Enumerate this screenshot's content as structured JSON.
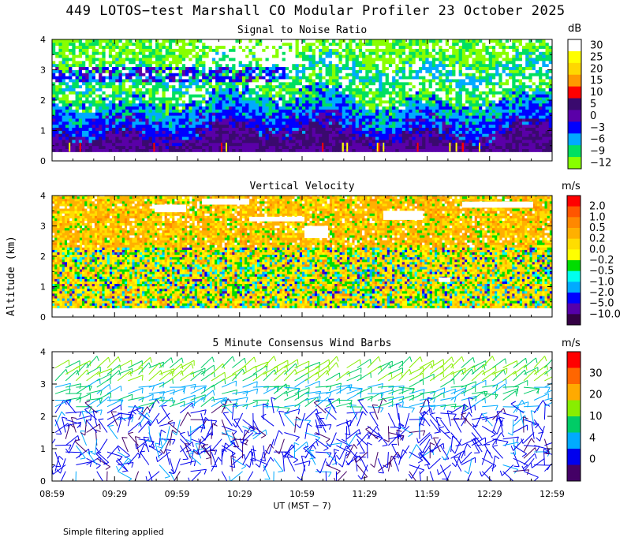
{
  "title": "449 LOTOS−test Marshall CO Modular Profiler 23 October 2025",
  "footer": "Simple filtering applied",
  "y_axis_label": "Altitude (km)",
  "x_axis_label": "UT  (MST − 7)",
  "x_ticks": [
    "08:59",
    "09:29",
    "09:59",
    "10:29",
    "10:59",
    "11:29",
    "11:59",
    "12:29",
    "12:59"
  ],
  "y_ticks": [
    "0",
    "1",
    "2",
    "3",
    "4"
  ],
  "chart_data": [
    {
      "type": "heatmap",
      "title": "Signal to Noise Ratio",
      "unit": "dB",
      "xlim": [
        "08:59",
        "12:59"
      ],
      "ylim": [
        0,
        4
      ],
      "data_altitude_range": [
        0.3,
        4.1
      ],
      "colorbar": {
        "labels": [
          "30",
          "25",
          "20",
          "15",
          "10",
          "5",
          "0",
          "−3",
          "−6",
          "−9",
          "−12"
        ],
        "colors": [
          "#ffffff",
          "#ffff00",
          "#ffd700",
          "#ff9900",
          "#ff0000",
          "#3a0a6e",
          "#5a00a8",
          "#0000ff",
          "#00aaff",
          "#00e060",
          "#88ff00"
        ]
      }
    },
    {
      "type": "heatmap",
      "title": "Vertical Velocity",
      "unit": "m/s",
      "xlim": [
        "08:59",
        "12:59"
      ],
      "ylim": [
        0,
        4
      ],
      "data_altitude_range": [
        0.3,
        4.1
      ],
      "colorbar": {
        "labels": [
          "2.0",
          "1.0",
          "0.5",
          "0.2",
          "0.0",
          "−0.2",
          "−0.5",
          "−1.0",
          "−2.0",
          "−5.0",
          "−10.0"
        ],
        "colors": [
          "#ff0000",
          "#ff5500",
          "#ff8800",
          "#ffb000",
          "#ffdd00",
          "#ffff00",
          "#00dd00",
          "#00ffee",
          "#00aaff",
          "#0000ff",
          "#5500aa",
          "#330044"
        ]
      }
    },
    {
      "type": "scatter",
      "subtype": "wind_barbs",
      "title": "5 Minute Consensus Wind Barbs",
      "unit": "m/s",
      "xlim": [
        "08:59",
        "12:59"
      ],
      "ylim": [
        0,
        4
      ],
      "colorbar": {
        "labels": [
          "30",
          "20",
          "10",
          "4",
          "0"
        ],
        "colors": [
          "#ff0000",
          "#ff6600",
          "#ffaa00",
          "#88ee00",
          "#00cc66",
          "#00aaff",
          "#0000ee",
          "#440066"
        ]
      }
    }
  ]
}
